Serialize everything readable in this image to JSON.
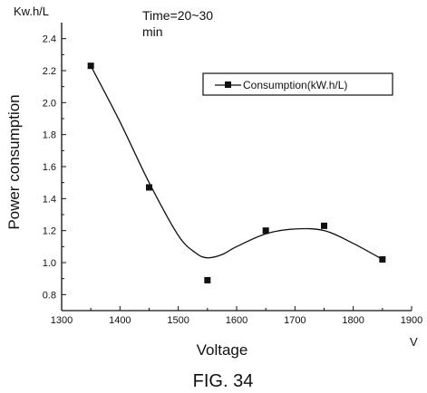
{
  "chart_data": {
    "type": "scatter",
    "title": "",
    "annotation": [
      "Time=20~30",
      "min"
    ],
    "xlabel": "Voltage",
    "ylabel": "Power consumption",
    "x_unit": "V",
    "y_unit": "Kw.h/L",
    "xlim": [
      1300,
      1900
    ],
    "ylim": [
      0.7,
      2.5
    ],
    "xticks": [
      1300,
      1400,
      1500,
      1600,
      1700,
      1800,
      1900
    ],
    "yticks": [
      0.8,
      1.0,
      1.2,
      1.4,
      1.6,
      1.8,
      2.0,
      2.2,
      2.4
    ],
    "series": [
      {
        "name": "Consumption(kW.h/L)",
        "marker": "square",
        "x": [
          1350,
          1450,
          1550,
          1650,
          1750,
          1850
        ],
        "y": [
          2.23,
          1.47,
          0.89,
          1.2,
          1.23,
          1.02
        ]
      }
    ],
    "fit_curve": {
      "x": [
        1350,
        1400,
        1450,
        1500,
        1530,
        1550,
        1575,
        1600,
        1650,
        1700,
        1750,
        1800,
        1850
      ],
      "y": [
        2.23,
        1.88,
        1.5,
        1.17,
        1.06,
        1.03,
        1.05,
        1.1,
        1.18,
        1.21,
        1.2,
        1.12,
        1.02
      ]
    },
    "legend": {
      "location": "top-right"
    },
    "grid": false
  },
  "figure_caption": "FIG. 34"
}
